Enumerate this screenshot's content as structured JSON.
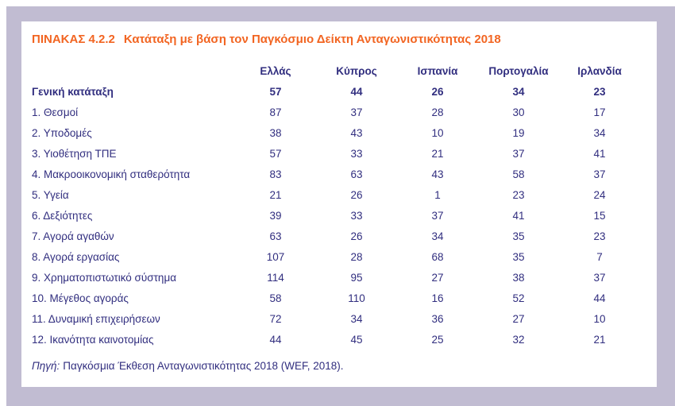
{
  "colors": {
    "accent_orange": "#f26522",
    "text_navy": "#312e7f",
    "frame_lavender": "#c1bcd2",
    "card_background": "#ffffff"
  },
  "table": {
    "title_number": "ΠΙΝΑΚΑΣ 4.2.2",
    "title_text": "Κατάταξη με βάση τον Παγκόσμιο Δείκτη Ανταγωνιστικότητας 2018",
    "columns": [
      "Ελλάς",
      "Κύπρος",
      "Ισπανία",
      "Πορτογαλία",
      "Ιρλανδία"
    ],
    "rows": [
      {
        "label": "Γενική κατάταξη",
        "bold": true,
        "values": [
          57,
          44,
          26,
          34,
          23
        ]
      },
      {
        "label": "1. Θεσμοί",
        "bold": false,
        "values": [
          87,
          37,
          28,
          30,
          17
        ]
      },
      {
        "label": "2. Υποδομές",
        "bold": false,
        "values": [
          38,
          43,
          10,
          19,
          34
        ]
      },
      {
        "label": "3. Υιοθέτηση ΤΠΕ",
        "bold": false,
        "values": [
          57,
          33,
          21,
          37,
          41
        ]
      },
      {
        "label": "4. Μακροοικονομική σταθερότητα",
        "bold": false,
        "values": [
          83,
          63,
          43,
          58,
          37
        ]
      },
      {
        "label": "5. Υγεία",
        "bold": false,
        "values": [
          21,
          26,
          1,
          23,
          24
        ]
      },
      {
        "label": "6. Δεξιότητες",
        "bold": false,
        "values": [
          39,
          33,
          37,
          41,
          15
        ]
      },
      {
        "label": "7. Αγορά αγαθών",
        "bold": false,
        "values": [
          63,
          26,
          34,
          35,
          23
        ]
      },
      {
        "label": "8. Αγορά εργασίας",
        "bold": false,
        "values": [
          107,
          28,
          68,
          35,
          7
        ]
      },
      {
        "label": "9. Χρηματοπιστωτικό σύστημα",
        "bold": false,
        "values": [
          114,
          95,
          27,
          38,
          37
        ]
      },
      {
        "label": "10. Μέγεθος αγοράς",
        "bold": false,
        "values": [
          58,
          110,
          16,
          52,
          44
        ]
      },
      {
        "label": "11. Δυναμική επιχειρήσεων",
        "bold": false,
        "values": [
          72,
          34,
          36,
          27,
          10
        ]
      },
      {
        "label": "12. Ικανότητα καινοτομίας",
        "bold": false,
        "values": [
          44,
          45,
          25,
          32,
          21
        ]
      }
    ],
    "source_label": "Πηγή:",
    "source_text": "Παγκόσμια Έκθεση Ανταγωνιστικότητας 2018 (WEF, 2018)."
  }
}
